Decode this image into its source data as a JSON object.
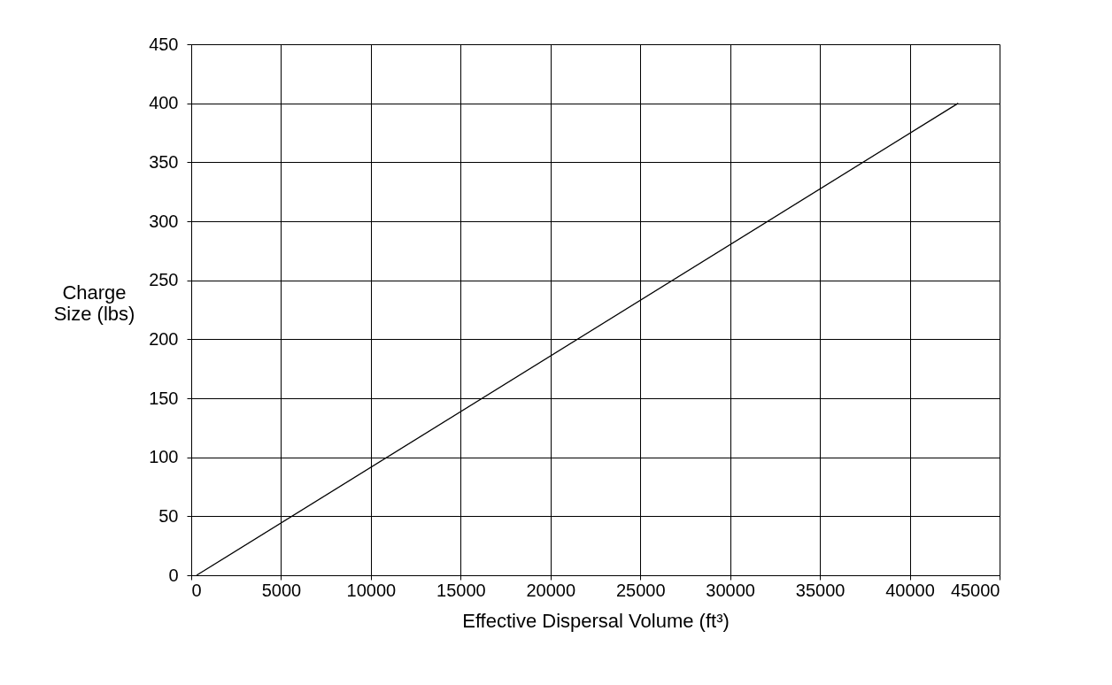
{
  "chart_data": {
    "type": "line",
    "xlabel": "Effective Dispersal Volume (ft³)",
    "ylabel": "Charge Size (lbs)",
    "x": [
      300,
      42700
    ],
    "series": [
      {
        "color": "#000000",
        "values": [
          0,
          400
        ]
      }
    ],
    "xlim": [
      0,
      45000
    ],
    "xticks": [
      0,
      5000,
      10000,
      15000,
      20000,
      25000,
      30000,
      35000,
      40000,
      45000
    ],
    "ylim": [
      0,
      450
    ],
    "yticks": [
      0,
      50,
      100,
      150,
      200,
      250,
      300,
      350,
      400,
      450
    ],
    "grid": true,
    "marker": "none",
    "line_style": "solid"
  }
}
